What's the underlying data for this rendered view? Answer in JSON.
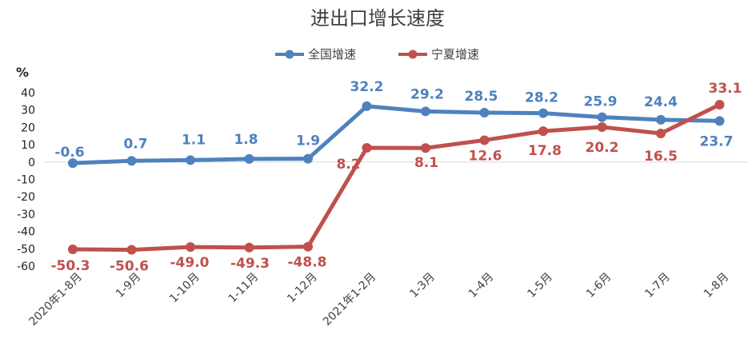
{
  "chart_data": {
    "type": "line",
    "title": "进出口增长速度",
    "unit": "%",
    "ylim": [
      -60,
      40
    ],
    "y_ticks": [
      40,
      30,
      20,
      10,
      0,
      -10,
      -20,
      -30,
      -40,
      -50,
      -60
    ],
    "grid": false,
    "legend_position": "top-center",
    "categories": [
      "2020年1-8月",
      "1-9月",
      "1-10月",
      "1-11月",
      "1-12月",
      "2021年1-2月",
      "1-3月",
      "1-4月",
      "1-5月",
      "1-6月",
      "1-7月",
      "1-8月"
    ],
    "series": [
      {
        "name": "全国增速",
        "color": "#4f81bd",
        "values": [
          -0.6,
          0.7,
          1.1,
          1.8,
          1.9,
          32.2,
          29.2,
          28.5,
          28.2,
          25.9,
          24.4,
          23.7
        ],
        "labels": [
          "-0.6",
          "0.7",
          "1.1",
          "1.8",
          "1.9",
          "32.2",
          "29.2",
          "28.5",
          "28.2",
          "25.9",
          "24.4",
          "23.7"
        ]
      },
      {
        "name": "宁夏增速",
        "color": "#c0504d",
        "values": [
          -50.3,
          -50.6,
          -49.0,
          -49.3,
          -48.8,
          8.2,
          8.1,
          12.6,
          17.8,
          20.2,
          16.5,
          33.1
        ],
        "labels": [
          "-50.3",
          "-50.6",
          "-49.0",
          "-49.3",
          "-48.8",
          "8.2",
          "8.1",
          "12.6",
          "17.8",
          "20.2",
          "16.5",
          "33.1"
        ]
      }
    ]
  }
}
